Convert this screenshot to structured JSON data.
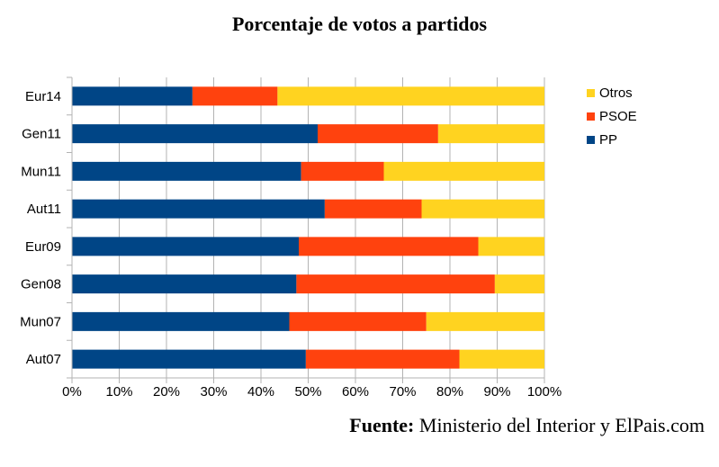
{
  "source": {
    "label": "Fuente:",
    "text": " Ministerio del Interior y ElPais.com"
  },
  "chart_data": {
    "type": "bar",
    "orientation": "horizontal",
    "stacked": "percent",
    "title": "Porcentaje de votos a partidos",
    "categories": [
      "Eur14",
      "Gen11",
      "Mun11",
      "Aut11",
      "Eur09",
      "Gen08",
      "Mun07",
      "Aut07"
    ],
    "series": [
      {
        "name": "PP",
        "color": "#004586",
        "values": [
          25.5,
          52,
          48.5,
          53.5,
          48,
          47.5,
          46,
          49.5
        ]
      },
      {
        "name": "PSOE",
        "color": "#ff420e",
        "values": [
          18,
          25.5,
          17.5,
          20.5,
          38,
          42,
          29,
          32.5
        ]
      },
      {
        "name": "Otros",
        "color": "#ffd320",
        "values": [
          56.5,
          22.5,
          34,
          26,
          14,
          10.5,
          25,
          18
        ]
      }
    ],
    "xlim": [
      0,
      100
    ],
    "xticks": [
      "0%",
      "10%",
      "20%",
      "30%",
      "40%",
      "50%",
      "60%",
      "70%",
      "80%",
      "90%",
      "100%"
    ],
    "grid": "vertical",
    "legend_position": "right",
    "legend_order": [
      "Otros",
      "PSOE",
      "PP"
    ]
  }
}
